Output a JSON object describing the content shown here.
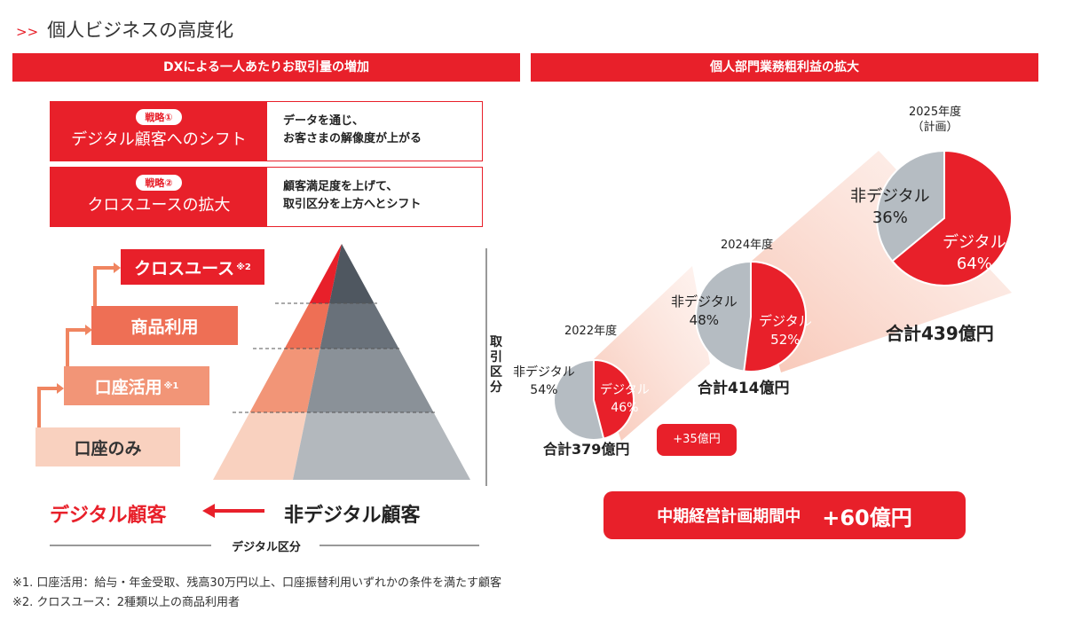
{
  "title": "個人ビジネスの高度化",
  "left": {
    "header": "DXによる一人あたりお取引量の増加",
    "strategies": [
      {
        "tag": "戦略①",
        "name": "デジタル顧客へのシフト",
        "desc1": "データを通じ、",
        "desc2": "お客さまの解像度が上がる"
      },
      {
        "tag": "戦略②",
        "name": "クロスユースの拡大",
        "desc1": "顧客満足度を上げて、",
        "desc2": "取引区分を上方へとシフト"
      }
    ],
    "steps": [
      {
        "label": "クロスユース",
        "note": "※2"
      },
      {
        "label": "商品利用",
        "note": ""
      },
      {
        "label": "口座活用",
        "note": "※1"
      },
      {
        "label": "口座のみ",
        "note": ""
      }
    ],
    "axis_vertical": "取引区分",
    "digital": "デジタル顧客",
    "nondigital": "非デジタル顧客",
    "axis_horizontal": "デジタル区分"
  },
  "right": {
    "header": "個人部門業務粗利益の拡大",
    "increase": "+35億円",
    "banner_label": "中期経営計画期間中",
    "banner_value": "+60億円"
  },
  "chart_data": {
    "type": "pie",
    "title": "個人部門業務粗利益の拡大",
    "pies": [
      {
        "year": "2022年度",
        "sub": "",
        "digital_label": "デジタル",
        "digital": 46,
        "digital_text": "46%",
        "non_label": "非デジタル",
        "non": 54,
        "non_text": "54%",
        "total": "合計379億円"
      },
      {
        "year": "2024年度",
        "sub": "",
        "digital_label": "デジタル",
        "digital": 52,
        "digital_text": "52%",
        "non_label": "非デジタル",
        "non": 48,
        "non_text": "48%",
        "total": "合計414億円"
      },
      {
        "year": "2025年度",
        "sub": "（計画）",
        "digital_label": "デジタル",
        "digital": 64,
        "digital_text": "64%",
        "non_label": "非デジタル",
        "non": 36,
        "non_text": "36%",
        "total": "合計439億円"
      }
    ]
  },
  "footnotes": [
    "※1. 口座活用：給与・年金受取、残高30万円以上、口座振替利用いずれかの条件を満たす顧客",
    "※2. クロスユース：2種類以上の商品利用者"
  ],
  "colors": {
    "red": "#e8202a",
    "gray": "#b5bcc2"
  }
}
